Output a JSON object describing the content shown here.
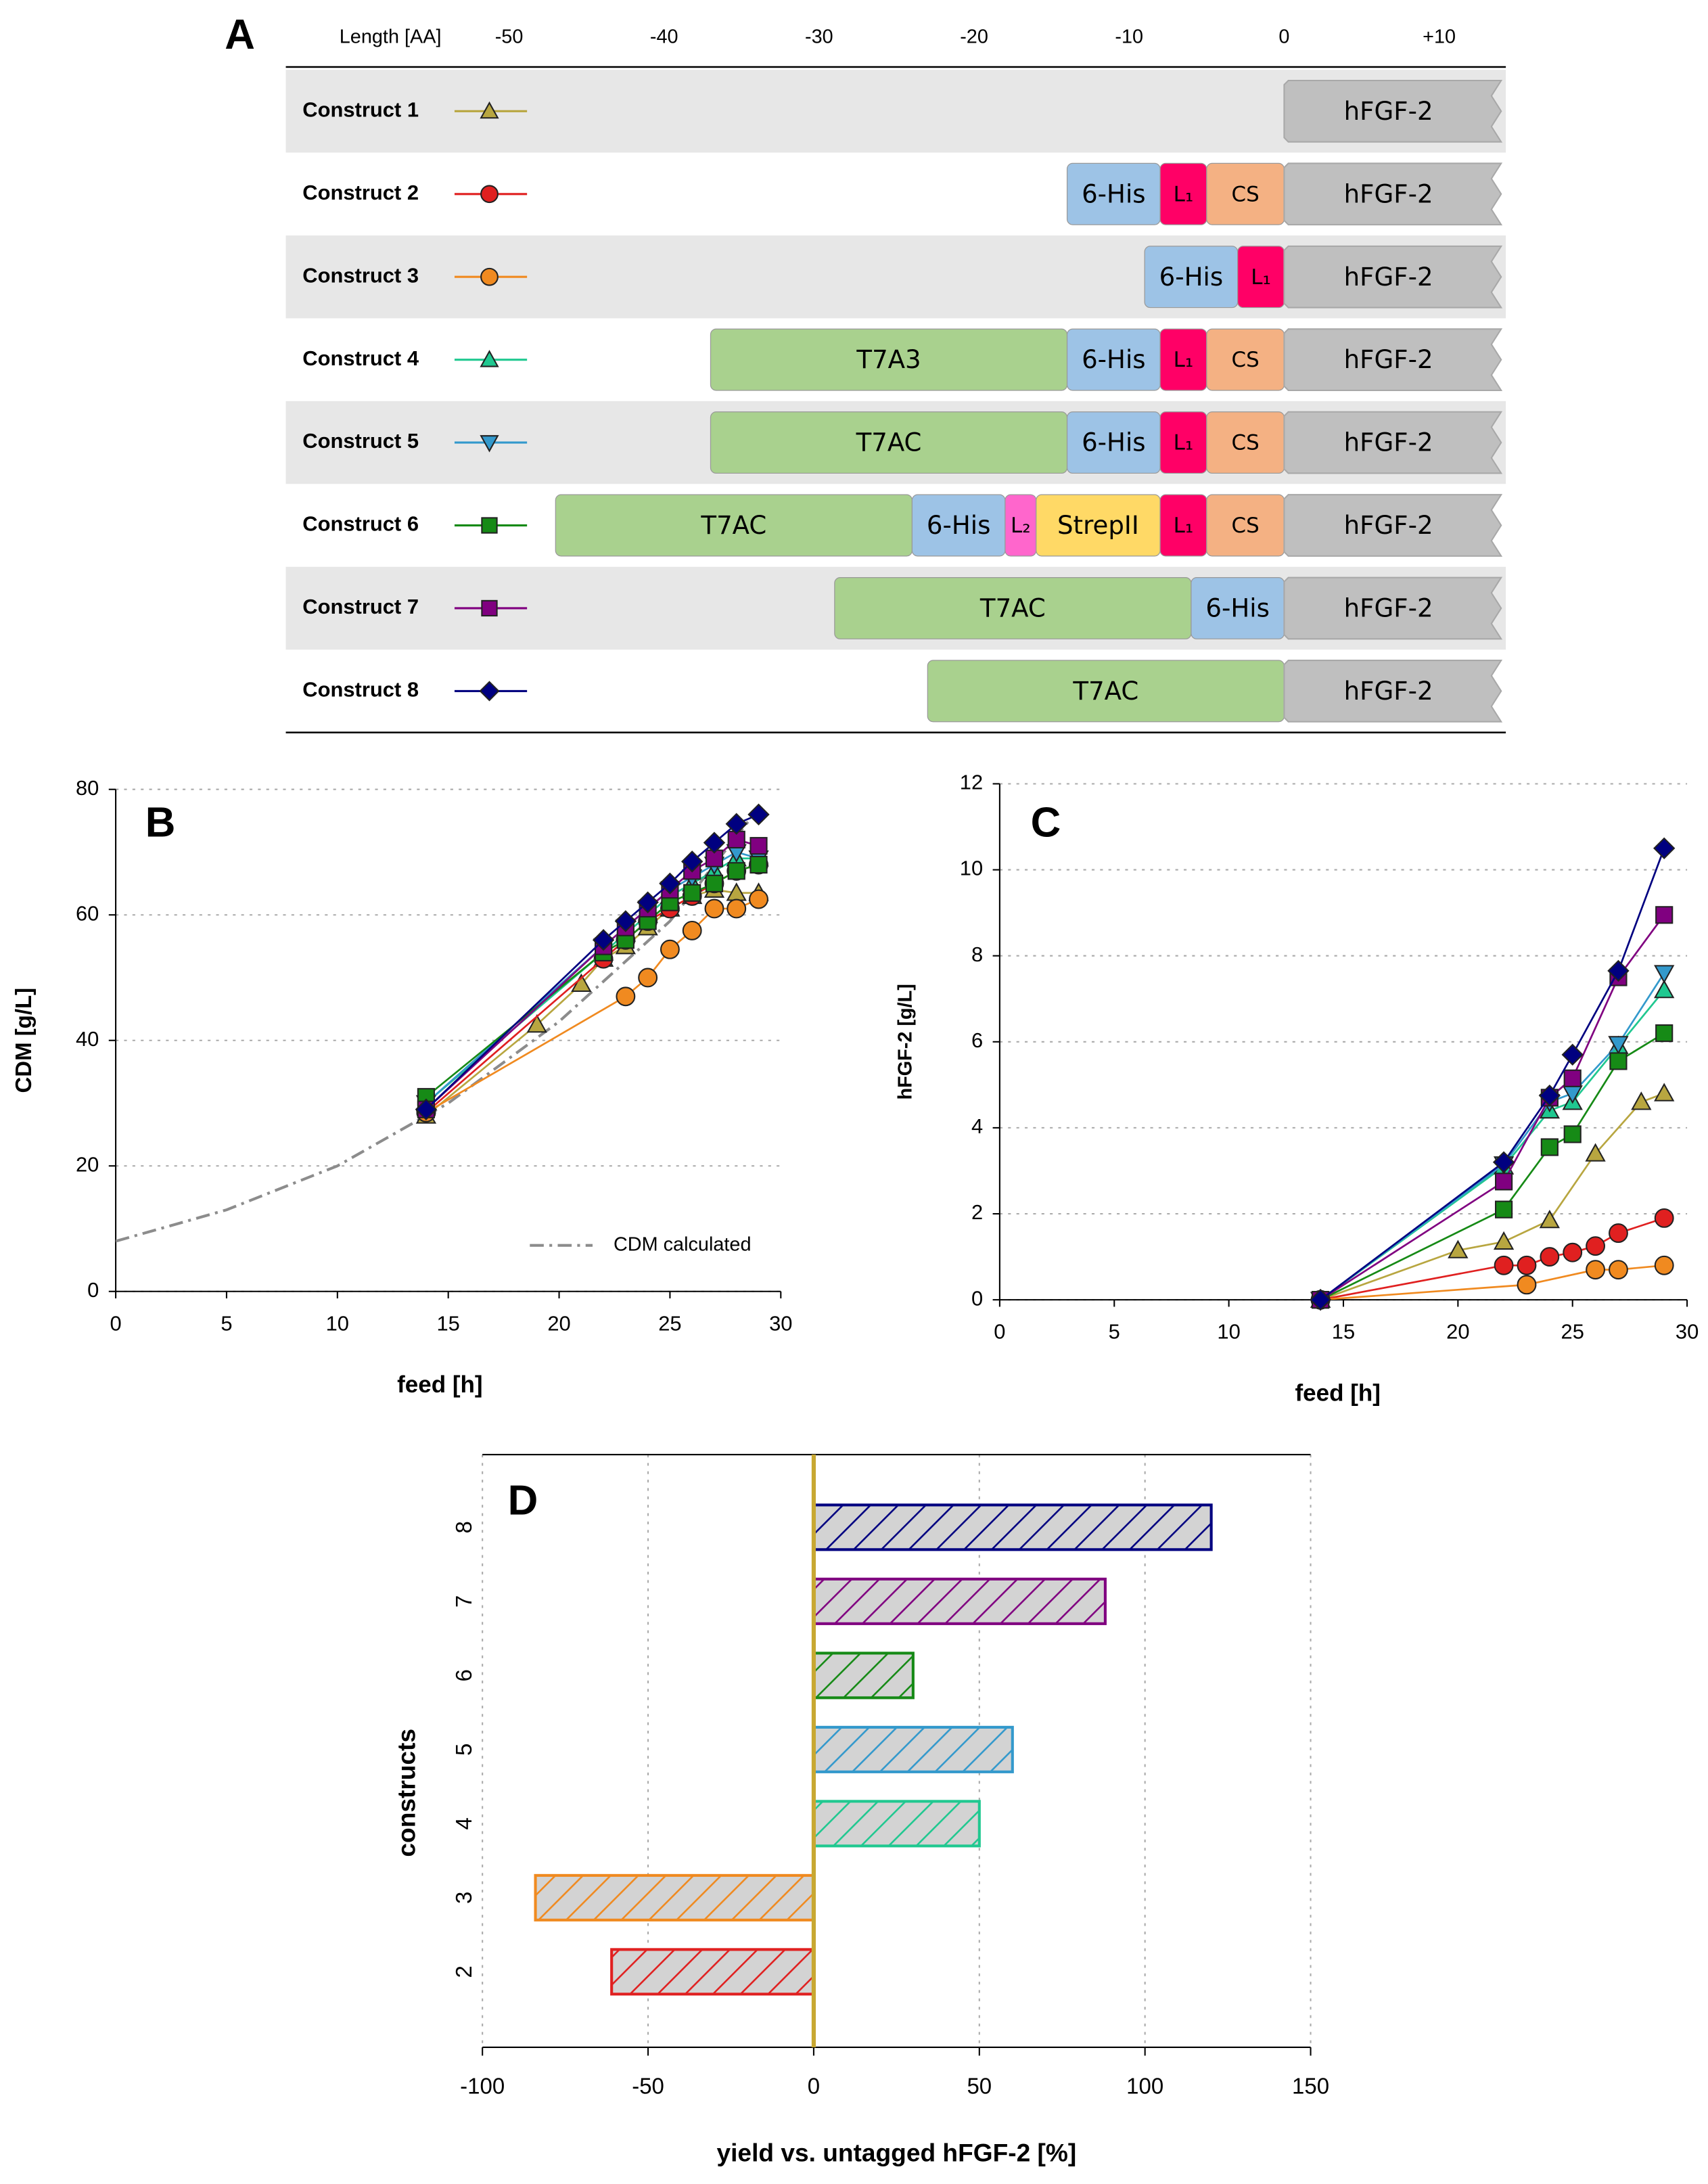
{
  "chart_data": [
    {
      "panel": "A",
      "type": "segments",
      "x_label": "Length [AA]",
      "xlim": [
        -64.4,
        14.3
      ],
      "xticks": [
        -50,
        -40,
        -30,
        -20,
        -10,
        0,
        {
          "value": 10,
          "label": "+10"
        }
      ],
      "rows": [
        {
          "name": "Construct 1",
          "color": "#b8a640",
          "marker": "triangle",
          "segments": [
            {
              "label": "hFGF-2",
              "start": 0,
              "end": 14,
              "color": "#bfbfbf"
            }
          ]
        },
        {
          "name": "Construct 2",
          "color": "#e02020",
          "marker": "circle",
          "segments": [
            {
              "label": "6-His",
              "start": -14,
              "end": -8,
              "color": "#9dc3e6"
            },
            {
              "label": "L₁",
              "start": -8,
              "end": -5,
              "color": "#ff0066"
            },
            {
              "label": "CS",
              "start": -5,
              "end": 0,
              "color": "#f4b183"
            },
            {
              "label": "hFGF-2",
              "start": 0,
              "end": 14,
              "color": "#bfbfbf"
            }
          ]
        },
        {
          "name": "Construct 3",
          "color": "#f08a20",
          "marker": "circle",
          "segments": [
            {
              "label": "6-His",
              "start": -9,
              "end": -3,
              "color": "#9dc3e6"
            },
            {
              "label": "L₁",
              "start": -3,
              "end": 0,
              "color": "#ff0066"
            },
            {
              "label": "hFGF-2",
              "start": 0,
              "end": 14,
              "color": "#bfbfbf"
            }
          ]
        },
        {
          "name": "Construct 4",
          "color": "#20c890",
          "marker": "triangle",
          "segments": [
            {
              "label": "T7A3",
              "start": -37,
              "end": -14,
              "color": "#a9d18e"
            },
            {
              "label": "6-His",
              "start": -14,
              "end": -8,
              "color": "#9dc3e6"
            },
            {
              "label": "L₁",
              "start": -8,
              "end": -5,
              "color": "#ff0066"
            },
            {
              "label": "CS",
              "start": -5,
              "end": 0,
              "color": "#f4b183"
            },
            {
              "label": "hFGF-2",
              "start": 0,
              "end": 14,
              "color": "#bfbfbf"
            }
          ]
        },
        {
          "name": "Construct 5",
          "color": "#3399cc",
          "marker": "triangle-down",
          "segments": [
            {
              "label": "T7AC",
              "start": -37,
              "end": -14,
              "color": "#a9d18e"
            },
            {
              "label": "6-His",
              "start": -14,
              "end": -8,
              "color": "#9dc3e6"
            },
            {
              "label": "L₁",
              "start": -8,
              "end": -5,
              "color": "#ff0066"
            },
            {
              "label": "CS",
              "start": -5,
              "end": 0,
              "color": "#f4b183"
            },
            {
              "label": "hFGF-2",
              "start": 0,
              "end": 14,
              "color": "#bfbfbf"
            }
          ]
        },
        {
          "name": "Construct 6",
          "color": "#168a16",
          "marker": "square",
          "segments": [
            {
              "label": "T7AC",
              "start": -47,
              "end": -24,
              "color": "#a9d18e"
            },
            {
              "label": "6-His",
              "start": -24,
              "end": -18,
              "color": "#9dc3e6"
            },
            {
              "label": "L₂",
              "start": -18,
              "end": -16,
              "color": "#ff66cc"
            },
            {
              "label": "StrepII",
              "start": -16,
              "end": -8,
              "color": "#ffd966"
            },
            {
              "label": "L₁",
              "start": -8,
              "end": -5,
              "color": "#ff0066"
            },
            {
              "label": "CS",
              "start": -5,
              "end": 0,
              "color": "#f4b183"
            },
            {
              "label": "hFGF-2",
              "start": 0,
              "end": 14,
              "color": "#bfbfbf"
            }
          ]
        },
        {
          "name": "Construct 7",
          "color": "#800080",
          "marker": "square",
          "segments": [
            {
              "label": "T7AC",
              "start": -29,
              "end": -6,
              "color": "#a9d18e"
            },
            {
              "label": "6-His",
              "start": -6,
              "end": 0,
              "color": "#9dc3e6"
            },
            {
              "label": "hFGF-2",
              "start": 0,
              "end": 14,
              "color": "#bfbfbf"
            }
          ]
        },
        {
          "name": "Construct 8",
          "color": "#000080",
          "marker": "diamond",
          "segments": [
            {
              "label": "T7AC",
              "start": -23,
              "end": 0,
              "color": "#a9d18e"
            },
            {
              "label": "hFGF-2",
              "start": 0,
              "end": 14,
              "color": "#bfbfbf"
            }
          ]
        }
      ]
    },
    {
      "panel": "B",
      "type": "line",
      "x_label": "feed [h]",
      "y_label": "CDM [g/L]",
      "xlim": [
        0,
        30
      ],
      "xticks": [
        0,
        5,
        10,
        15,
        20,
        25,
        30
      ],
      "ylim": [
        0,
        80
      ],
      "yticks": [
        0,
        20,
        40,
        60,
        80
      ],
      "grid": true,
      "legend": "lower right",
      "series": [
        {
          "color": "#b8a640",
          "marker": "triangle",
          "x": [
            14,
            19,
            21,
            22,
            23,
            24,
            25,
            26,
            27,
            28,
            29
          ],
          "values": [
            28,
            42.5,
            49,
            53,
            55,
            58,
            61,
            63,
            64,
            63.5,
            63.5
          ]
        },
        {
          "color": "#e02020",
          "marker": "circle",
          "x": [
            14,
            22,
            23,
            24,
            25,
            26,
            27,
            28,
            29
          ],
          "values": [
            28.5,
            53,
            56,
            59,
            61,
            63,
            65,
            67,
            68
          ]
        },
        {
          "color": "#f08a20",
          "marker": "circle",
          "x": [
            14,
            23,
            24,
            25,
            26,
            27,
            28,
            29
          ],
          "values": [
            28.5,
            47,
            50,
            54.5,
            57.5,
            61,
            61,
            62.5
          ]
        },
        {
          "color": "#20c890",
          "marker": "triangle",
          "x": [
            14,
            22,
            23,
            24,
            25,
            26,
            27,
            28,
            29
          ],
          "values": [
            30,
            54,
            57,
            60,
            63,
            65,
            67,
            69,
            69
          ]
        },
        {
          "color": "#3399cc",
          "marker": "triangle-down",
          "x": [
            14,
            22,
            23,
            24,
            25,
            26,
            27,
            28,
            29
          ],
          "values": [
            30,
            55,
            58,
            61,
            64,
            66,
            68,
            70,
            69
          ]
        },
        {
          "color": "#168a16",
          "marker": "square",
          "x": [
            14,
            22,
            23,
            24,
            25,
            26,
            27,
            28,
            29
          ],
          "values": [
            31,
            54,
            56,
            59,
            62,
            63.5,
            65,
            67,
            68
          ]
        },
        {
          "color": "#800080",
          "marker": "square",
          "x": [
            14,
            22,
            23,
            24,
            25,
            26,
            27,
            28,
            29
          ],
          "values": [
            29,
            55,
            58,
            61,
            64,
            67,
            69,
            72,
            71
          ]
        },
        {
          "color": "#000080",
          "marker": "diamond",
          "x": [
            14,
            22,
            23,
            24,
            25,
            26,
            27,
            28,
            29
          ],
          "values": [
            29,
            56,
            59,
            62,
            65,
            68.5,
            71.5,
            74.5,
            76
          ]
        },
        {
          "name": "CDM calculated",
          "color": "#8c8c8c",
          "dash": "dashdot",
          "x": [
            0,
            5,
            10,
            15,
            20,
            25,
            29
          ],
          "values": [
            8,
            13,
            20,
            30,
            43,
            59,
            77
          ]
        }
      ]
    },
    {
      "panel": "C",
      "type": "line",
      "x_label": "feed [h]",
      "y_label": "hFGF-2 [g/L]",
      "xlim": [
        0,
        30
      ],
      "xticks": [
        0,
        5,
        10,
        15,
        20,
        25,
        30
      ],
      "ylim": [
        0,
        12
      ],
      "yticks": [
        0,
        2,
        4,
        6,
        8,
        10,
        12
      ],
      "grid": true,
      "series": [
        {
          "color": "#b8a640",
          "marker": "triangle",
          "x": [
            14,
            20,
            22,
            24,
            26,
            28,
            29
          ],
          "values": [
            0,
            1.15,
            1.35,
            1.85,
            3.4,
            4.6,
            4.8
          ]
        },
        {
          "color": "#e02020",
          "marker": "circle",
          "x": [
            14,
            22,
            23,
            24,
            25,
            26,
            27,
            29
          ],
          "values": [
            0,
            0.8,
            0.8,
            1.0,
            1.1,
            1.25,
            1.55,
            1.9
          ]
        },
        {
          "color": "#f08a20",
          "marker": "circle",
          "x": [
            14,
            23,
            26,
            27,
            29
          ],
          "values": [
            0,
            0.35,
            0.7,
            0.7,
            0.8
          ]
        },
        {
          "color": "#20c890",
          "marker": "triangle",
          "x": [
            14,
            22,
            24,
            25,
            27,
            29
          ],
          "values": [
            0,
            3.1,
            4.4,
            4.6,
            5.9,
            7.2
          ]
        },
        {
          "color": "#3399cc",
          "marker": "triangle-down",
          "x": [
            14,
            22,
            24,
            25,
            27,
            29
          ],
          "values": [
            0,
            3.15,
            4.6,
            4.8,
            5.95,
            7.6
          ]
        },
        {
          "color": "#168a16",
          "marker": "square",
          "x": [
            14,
            22,
            24,
            25,
            27,
            29
          ],
          "values": [
            0,
            2.1,
            3.55,
            3.85,
            5.55,
            6.2
          ]
        },
        {
          "color": "#800080",
          "marker": "square",
          "x": [
            14,
            22,
            24,
            25,
            27,
            29
          ],
          "values": [
            0,
            2.75,
            4.7,
            5.15,
            7.5,
            8.95
          ]
        },
        {
          "color": "#000080",
          "marker": "diamond",
          "x": [
            14,
            22,
            24,
            25,
            27,
            29
          ],
          "values": [
            0,
            3.2,
            4.75,
            5.7,
            7.65,
            10.5
          ]
        }
      ]
    },
    {
      "panel": "D",
      "type": "barh",
      "x_label": "yield vs. untagged hFGF-2 [%]",
      "y_label": "constructs",
      "categories": [
        "2",
        "3",
        "4",
        "5",
        "6",
        "7",
        "8"
      ],
      "values": [
        -61,
        -84,
        50,
        60,
        30,
        88,
        120
      ],
      "colors": [
        "#e02020",
        "#f08a20",
        "#20c890",
        "#3399cc",
        "#168a16",
        "#800080",
        "#000080"
      ],
      "xlim": [
        -100,
        150
      ],
      "xticks": [
        -100,
        -50,
        0,
        50,
        100,
        150
      ],
      "grid": true,
      "hatch": true,
      "zero_line_color": "#c8a832"
    }
  ]
}
